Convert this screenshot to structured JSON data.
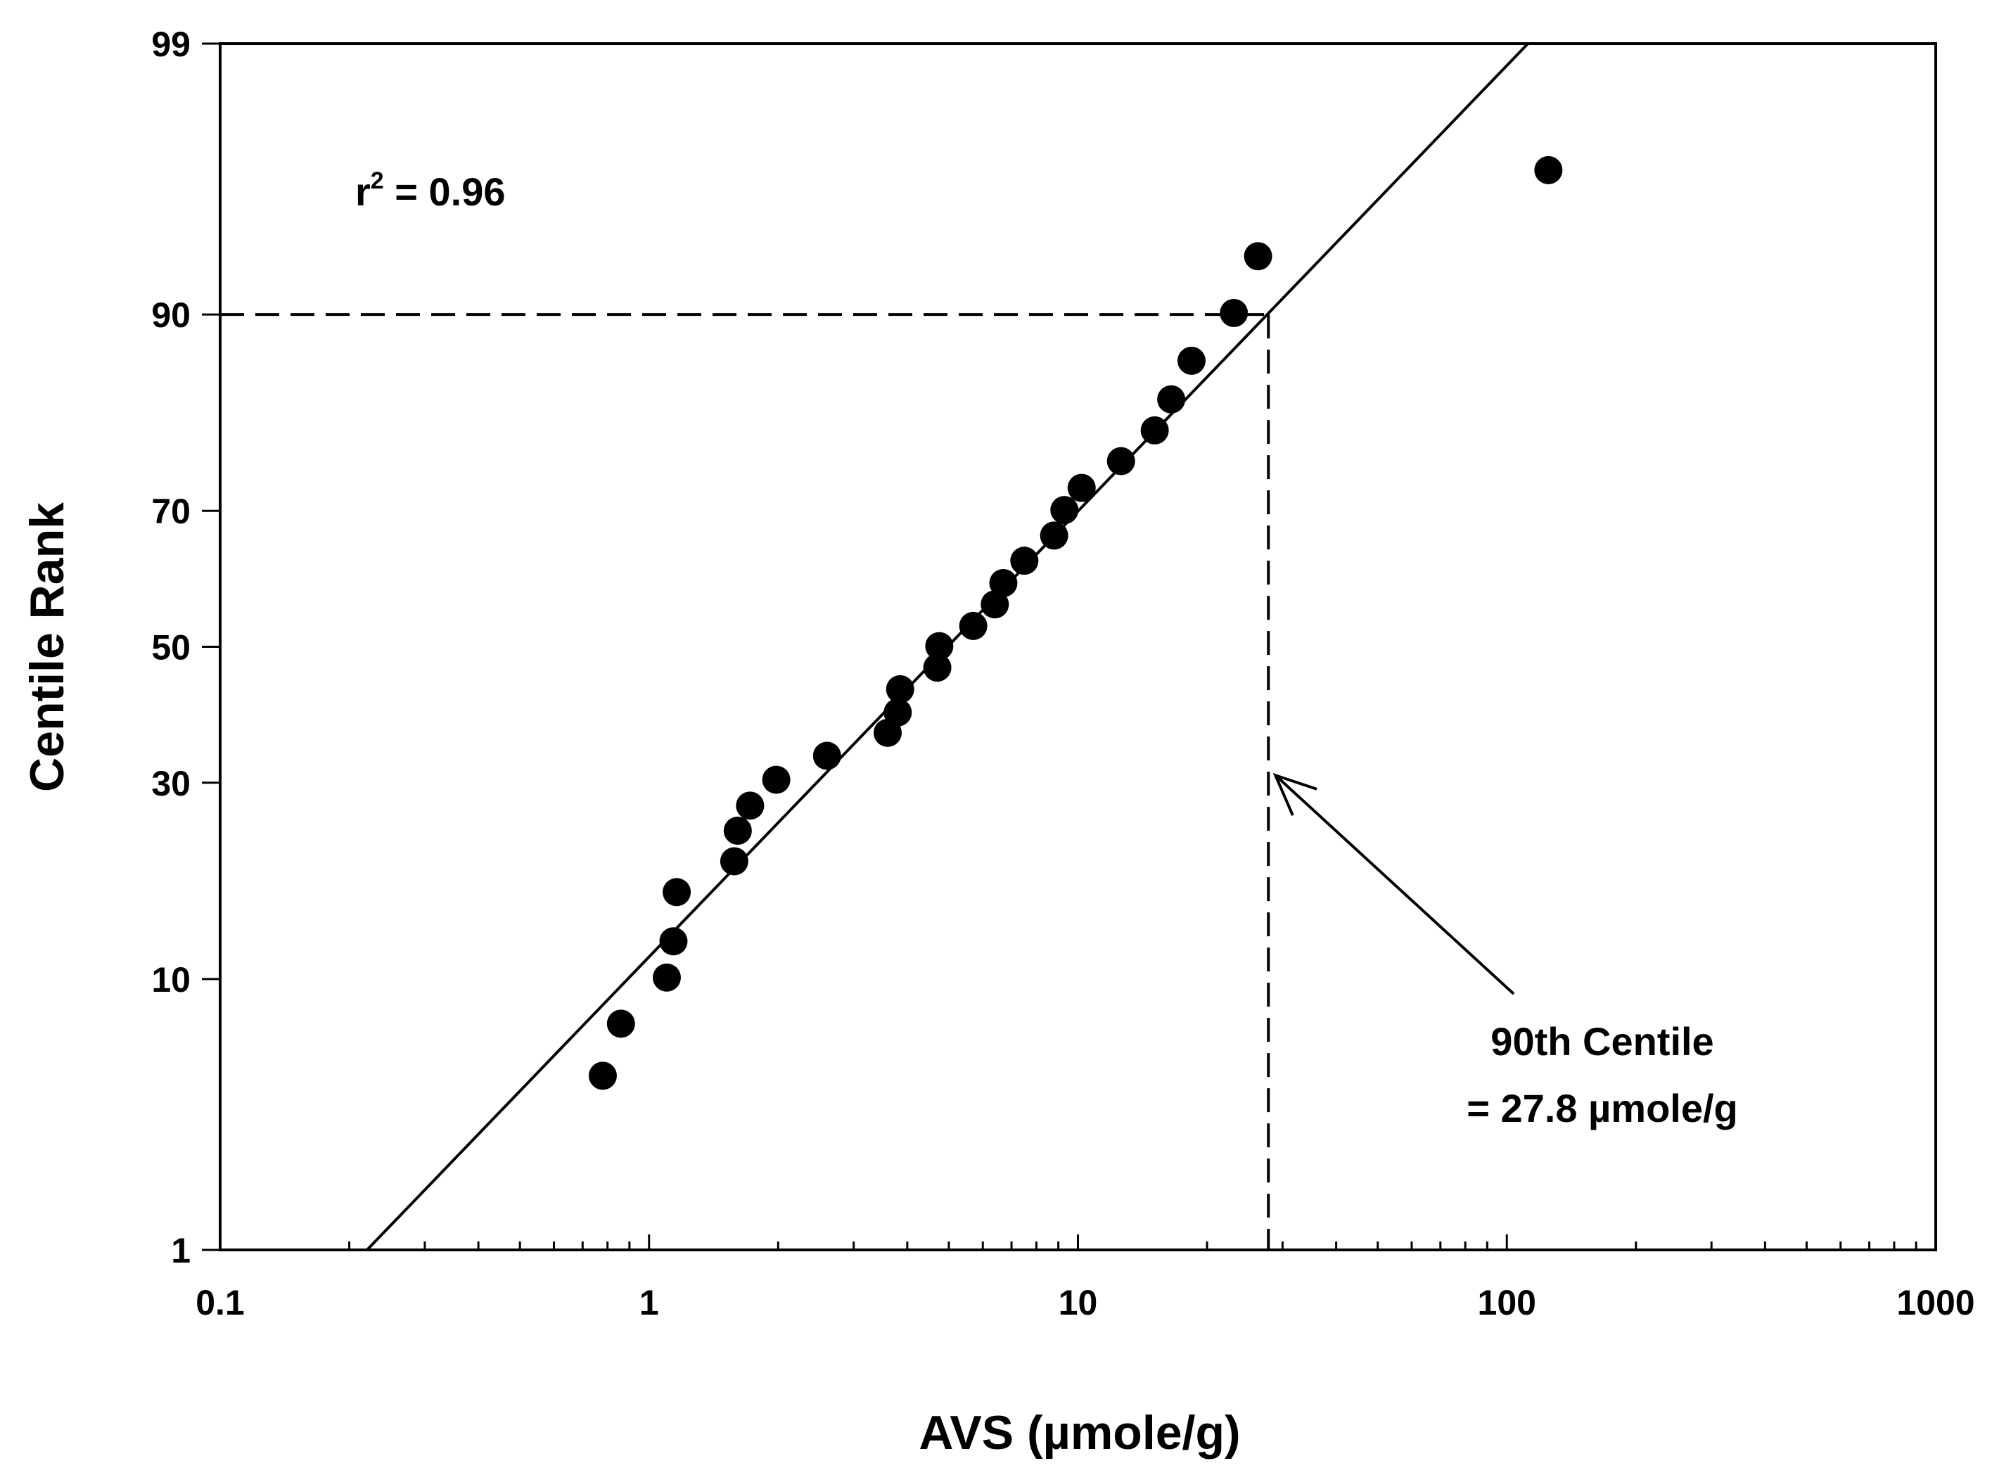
{
  "chart_data": {
    "type": "scatter",
    "title": "",
    "xlabel": "AVS (µmole/g)",
    "ylabel": "Centile Rank",
    "x_scale": "log",
    "y_scale": "probability",
    "xlim": [
      0.1,
      1000
    ],
    "ylim": [
      1,
      99
    ],
    "grid": false,
    "x_tick_labels": [
      "0.1",
      "1",
      "10",
      "100",
      "1000"
    ],
    "x_ticks": [
      0.1,
      1,
      10,
      100,
      1000
    ],
    "y_tick_labels": [
      "1",
      "10",
      "30",
      "50",
      "70",
      "90",
      "99"
    ],
    "y_ticks": [
      1,
      10,
      30,
      50,
      70,
      90,
      99
    ],
    "series": [
      {
        "name": "AVS samples",
        "marker": "circle",
        "color": "#000000",
        "points": [
          {
            "x": 0.78,
            "y": 4.9
          },
          {
            "x": 0.86,
            "y": 7.3
          },
          {
            "x": 1.1,
            "y": 10.1
          },
          {
            "x": 1.14,
            "y": 12.8
          },
          {
            "x": 1.16,
            "y": 17.2
          },
          {
            "x": 1.58,
            "y": 20.4
          },
          {
            "x": 1.61,
            "y": 23.9
          },
          {
            "x": 1.72,
            "y": 27.0
          },
          {
            "x": 1.98,
            "y": 30.4
          },
          {
            "x": 2.6,
            "y": 33.7
          },
          {
            "x": 3.6,
            "y": 37.0
          },
          {
            "x": 3.8,
            "y": 40.0
          },
          {
            "x": 3.85,
            "y": 43.5
          },
          {
            "x": 4.7,
            "y": 46.8
          },
          {
            "x": 4.75,
            "y": 50.1
          },
          {
            "x": 5.7,
            "y": 53.2
          },
          {
            "x": 6.4,
            "y": 56.5
          },
          {
            "x": 6.7,
            "y": 59.7
          },
          {
            "x": 7.5,
            "y": 63.0
          },
          {
            "x": 8.8,
            "y": 66.6
          },
          {
            "x": 9.3,
            "y": 70.1
          },
          {
            "x": 10.2,
            "y": 73.0
          },
          {
            "x": 12.6,
            "y": 76.3
          },
          {
            "x": 15.1,
            "y": 79.8
          },
          {
            "x": 16.5,
            "y": 83.0
          },
          {
            "x": 18.4,
            "y": 86.5
          },
          {
            "x": 23.1,
            "y": 90.1
          },
          {
            "x": 26.3,
            "y": 93.4
          },
          {
            "x": 125.0,
            "y": 96.7
          }
        ]
      }
    ],
    "fit_line": {
      "name": "regression line",
      "color": "#000000",
      "points": [
        {
          "x": 0.22,
          "y": 1
        },
        {
          "x": 112,
          "y": 99
        }
      ]
    },
    "reference_lines": [
      {
        "name": "90th-centile-horizontal",
        "from": {
          "x": 0.1,
          "y": 90
        },
        "to": {
          "x": 27.8,
          "y": 90
        }
      },
      {
        "name": "90th-centile-vertical",
        "from": {
          "x": 27.8,
          "y": 90
        },
        "to": {
          "x": 27.8,
          "y": 1
        }
      }
    ],
    "annotations": {
      "r2_prefix": "r",
      "r2_superscript": "2",
      "r2_value": " = 0.96",
      "centile_line1": "90th Centile",
      "centile_line2": "= 27.8 µmole/g",
      "arrow_target": {
        "x": 27.8,
        "y": 31
      }
    }
  }
}
